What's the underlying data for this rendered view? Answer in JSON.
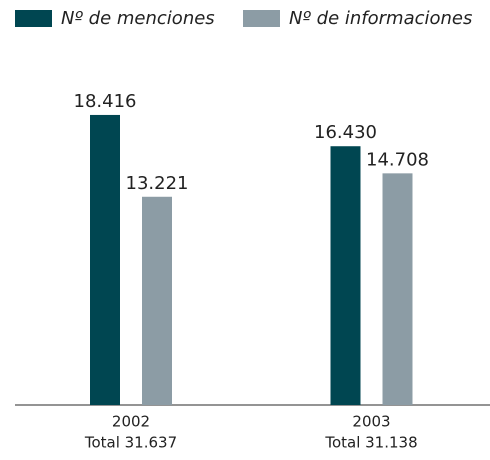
{
  "chart_data": {
    "type": "bar",
    "categories": [
      "2002",
      "2003"
    ],
    "totals": [
      "Total 31.637",
      "Total 31.138"
    ],
    "series": [
      {
        "name": "Nº de menciones",
        "color": "#004651",
        "values": [
          18416,
          16430
        ],
        "value_labels": [
          "18.416",
          "16.430"
        ]
      },
      {
        "name": "Nº de informaciones",
        "color": "#8c9ca5",
        "values": [
          13221,
          14708
        ],
        "value_labels": [
          "13.221",
          "14.708"
        ]
      }
    ],
    "ylim": [
      0,
      20000
    ]
  }
}
